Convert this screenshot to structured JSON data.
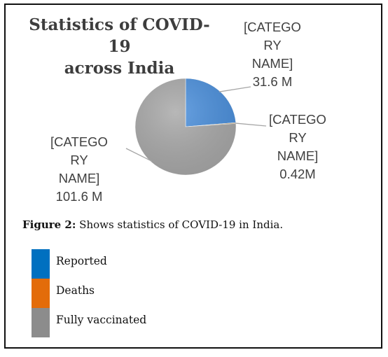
{
  "caption": {
    "figure_label": "Figure 2:",
    "text": "Shows statistics of COVID-19 in India."
  },
  "legend": {
    "items": [
      {
        "label": "Reported",
        "color": "#0070c0"
      },
      {
        "label": "Deaths",
        "color": "#e36c0a"
      },
      {
        "label": "Fully vaccinated",
        "color": "#8c8c8c"
      }
    ]
  },
  "chart_data": {
    "type": "pie",
    "title": "Statistics of COVID-19\nacross India",
    "categories": [
      "Reported",
      "Deaths",
      "Fully vaccinated"
    ],
    "values": [
      31.6,
      0.42,
      101.6
    ],
    "unit": "M",
    "data_labels": [
      "[CATEGO\nRY\nNAME]\n31.6 M",
      "[CATEGO\nRY\nNAME]\n0.42M",
      "[CATEGO\nRY\nNAME]\n101.6 M"
    ],
    "colors": [
      "#4a8fdc",
      "#c49a5a",
      "#a8a8a8"
    ],
    "legend": "bottom"
  }
}
